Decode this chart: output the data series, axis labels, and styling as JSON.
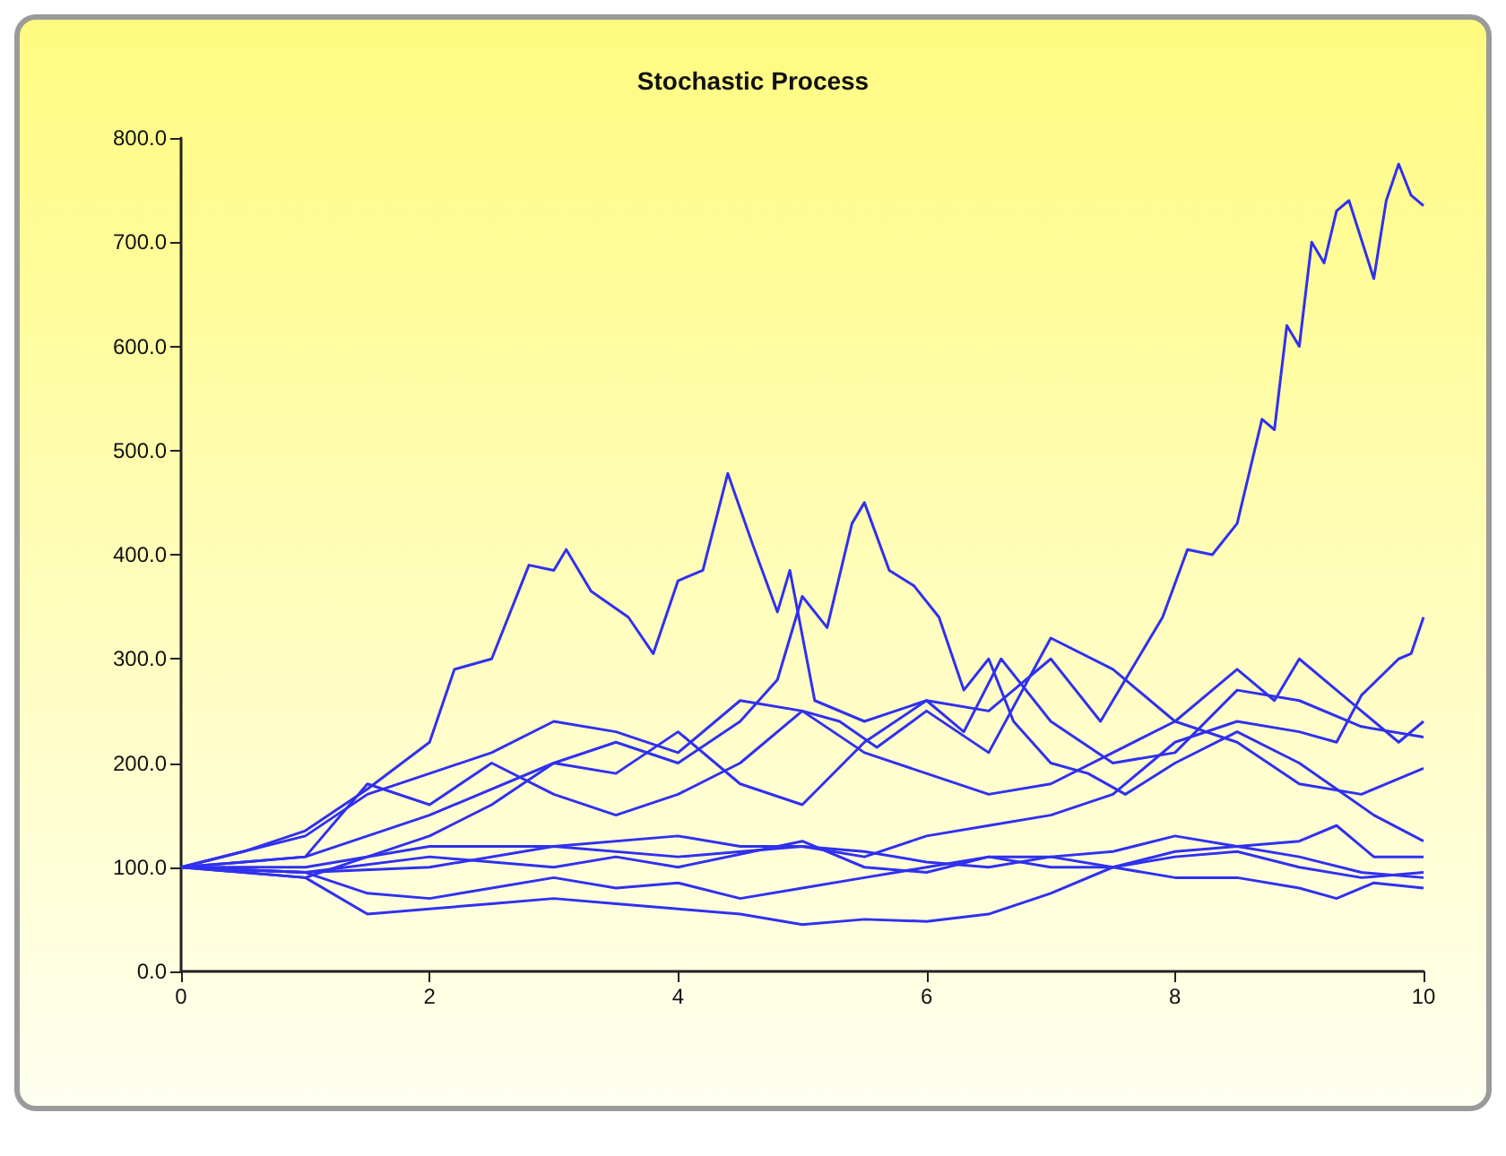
{
  "chart_data": {
    "type": "line",
    "title": "Stochastic Process",
    "xlim": [
      0,
      10
    ],
    "xticks": [
      0,
      2,
      4,
      6,
      8,
      10
    ],
    "ylim": [
      0,
      800
    ],
    "yticks": [
      {
        "value": 0,
        "label": "0.0"
      },
      {
        "value": 100,
        "label": "100.0"
      },
      {
        "value": 200,
        "label": "200.0"
      },
      {
        "value": 300,
        "label": "300.0"
      },
      {
        "value": 400,
        "label": "400.0"
      },
      {
        "value": 500,
        "label": "500.0"
      },
      {
        "value": 600,
        "label": "600.0"
      },
      {
        "value": 700,
        "label": "700.0"
      },
      {
        "value": 800,
        "label": "800.0"
      }
    ],
    "grid": false,
    "marker": "none",
    "line_style": "solid",
    "series": [
      {
        "color": "#3030f0",
        "x": [
          0,
          0.5,
          1,
          1.5,
          2,
          2.2,
          2.5,
          2.8,
          3.0,
          3.1,
          3.3,
          3.6,
          3.8,
          4.0,
          4.2,
          4.4,
          4.6,
          4.8,
          4.9,
          5.1,
          5.5,
          6.0,
          6.5,
          7.0,
          7.4,
          7.7,
          7.9,
          8.1,
          8.3,
          8.5,
          8.7,
          8.8,
          8.9,
          9.0,
          9.1,
          9.2,
          9.3,
          9.4,
          9.6,
          9.7,
          9.8,
          9.9,
          10
        ],
        "values": [
          100,
          115,
          135,
          175,
          220,
          290,
          300,
          390,
          385,
          405,
          365,
          340,
          305,
          375,
          385,
          478,
          410,
          345,
          385,
          260,
          240,
          260,
          250,
          300,
          240,
          300,
          340,
          405,
          400,
          430,
          530,
          520,
          620,
          600,
          700,
          680,
          730,
          740,
          665,
          740,
          775,
          745,
          735
        ]
      },
      {
        "color": "#3030f0",
        "x": [
          0,
          1,
          2,
          3,
          3.5,
          4,
          4.5,
          4.8,
          5.0,
          5.2,
          5.4,
          5.5,
          5.7,
          5.9,
          6.1,
          6.3,
          6.5,
          6.7,
          7.0,
          7.3,
          7.6,
          8.0,
          8.5,
          9.0,
          9.3,
          9.6,
          10
        ],
        "values": [
          100,
          110,
          150,
          200,
          220,
          200,
          240,
          280,
          360,
          330,
          430,
          450,
          385,
          370,
          340,
          270,
          300,
          240,
          200,
          190,
          170,
          200,
          230,
          200,
          175,
          150,
          125
        ]
      },
      {
        "color": "#3030f0",
        "x": [
          0,
          1,
          2,
          3,
          4,
          5,
          5.5,
          6,
          6.5,
          7,
          7.5,
          8,
          8.5,
          9,
          9.3,
          9.5,
          9.8,
          9.9,
          10
        ],
        "values": [
          100,
          95,
          100,
          120,
          110,
          120,
          110,
          130,
          140,
          150,
          170,
          220,
          240,
          230,
          220,
          265,
          300,
          305,
          340
        ]
      },
      {
        "color": "#3030f0",
        "x": [
          0,
          1,
          1.5,
          2,
          2.5,
          3,
          3.5,
          4,
          4.5,
          5,
          5.3,
          5.6,
          6,
          6.5,
          7,
          7.5,
          8,
          8.5,
          8.8,
          9.0,
          9.3,
          9.5,
          9.8,
          10
        ],
        "values": [
          100,
          130,
          170,
          190,
          210,
          240,
          230,
          210,
          260,
          250,
          240,
          215,
          250,
          210,
          320,
          290,
          240,
          290,
          260,
          300,
          270,
          250,
          220,
          240
        ]
      },
      {
        "color": "#3030f0",
        "x": [
          0,
          1,
          2,
          2.5,
          3,
          3.5,
          4,
          4.5,
          5,
          5.5,
          6,
          6.3,
          6.6,
          7,
          7.5,
          8,
          8.5,
          9,
          9.5,
          10
        ],
        "values": [
          100,
          90,
          130,
          160,
          200,
          190,
          230,
          180,
          160,
          220,
          260,
          230,
          300,
          240,
          200,
          210,
          270,
          260,
          235,
          225
        ]
      },
      {
        "color": "#3030f0",
        "x": [
          0,
          1,
          1.5,
          2,
          2.5,
          3,
          3.5,
          4,
          4.5,
          5,
          5.5,
          6,
          6.5,
          7,
          7.5,
          8,
          8.5,
          9,
          9.5,
          10
        ],
        "values": [
          100,
          110,
          180,
          160,
          200,
          170,
          150,
          170,
          200,
          250,
          210,
          190,
          170,
          180,
          210,
          240,
          220,
          180,
          170,
          195
        ]
      },
      {
        "color": "#3030f0",
        "x": [
          0,
          1,
          2,
          3,
          4,
          4.5,
          5,
          5.5,
          6,
          6.5,
          7,
          7.5,
          8,
          8.5,
          9,
          9.3,
          9.6,
          10
        ],
        "values": [
          100,
          100,
          120,
          120,
          130,
          120,
          120,
          115,
          105,
          100,
          110,
          115,
          130,
          120,
          125,
          140,
          110,
          110
        ]
      },
      {
        "color": "#3030f0",
        "x": [
          0,
          1,
          2,
          3,
          3.5,
          4,
          5,
          5.5,
          6,
          6.5,
          7,
          7.5,
          8,
          8.5,
          9,
          9.5,
          10
        ],
        "values": [
          100,
          95,
          110,
          100,
          110,
          100,
          125,
          100,
          95,
          110,
          110,
          100,
          115,
          120,
          110,
          95,
          90
        ]
      },
      {
        "color": "#3030f0",
        "x": [
          0,
          1,
          1.5,
          2,
          2.5,
          3,
          3.5,
          4,
          4.5,
          5,
          5.5,
          6,
          6.5,
          7,
          7.5,
          8,
          8.5,
          9,
          9.3,
          9.6,
          10
        ],
        "values": [
          100,
          95,
          75,
          70,
          80,
          90,
          80,
          85,
          70,
          80,
          90,
          100,
          110,
          100,
          100,
          90,
          90,
          80,
          70,
          85,
          80
        ]
      },
      {
        "color": "#3030f0",
        "x": [
          0,
          1,
          1.5,
          2,
          2.5,
          3,
          3.5,
          4,
          4.5,
          5,
          5.5,
          6,
          6.5,
          7,
          7.5,
          8,
          8.5,
          9,
          9.5,
          10
        ],
        "values": [
          100,
          90,
          55,
          60,
          65,
          70,
          65,
          60,
          55,
          45,
          50,
          48,
          55,
          75,
          100,
          110,
          115,
          100,
          90,
          95
        ]
      }
    ]
  }
}
